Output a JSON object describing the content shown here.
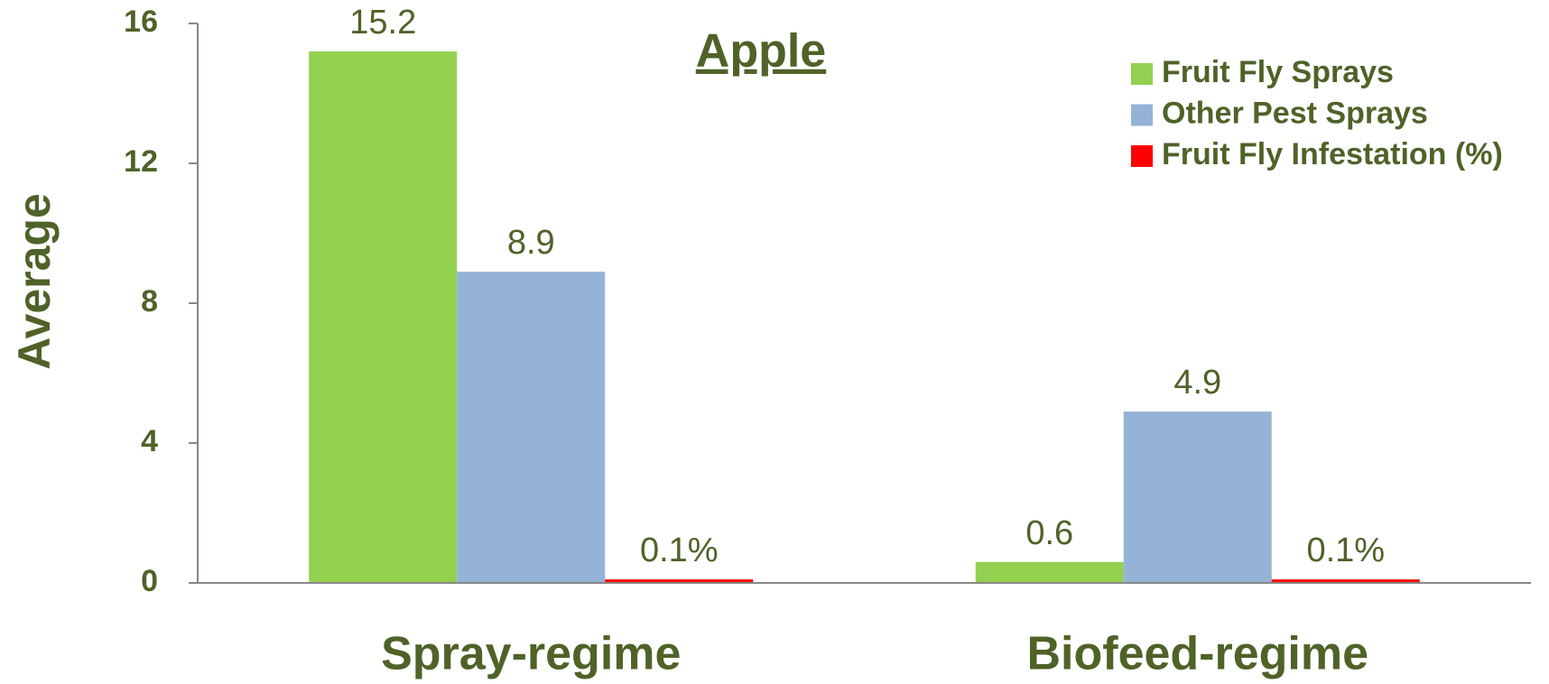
{
  "chart_data": {
    "type": "bar",
    "title": "Apple",
    "y_label": "Average",
    "categories": [
      "Spray-regime",
      "Biofeed-regime"
    ],
    "series": [
      {
        "name": "Fruit Fly Sprays",
        "color": "#92d050",
        "values": [
          15.2,
          0.6
        ]
      },
      {
        "name": "Other Pest Sprays",
        "color": "#95b3d7",
        "values": [
          8.9,
          4.9
        ]
      },
      {
        "name": "Fruit Fly Infestation (%)",
        "color": "#ff0000",
        "values": [
          0.1,
          0.1
        ],
        "value_labels": [
          "0.1%",
          "0.1%"
        ]
      }
    ],
    "ylim": [
      0,
      16
    ],
    "yticks": [
      0,
      4,
      8,
      12,
      16
    ],
    "grid": false,
    "legend": "upper right"
  }
}
